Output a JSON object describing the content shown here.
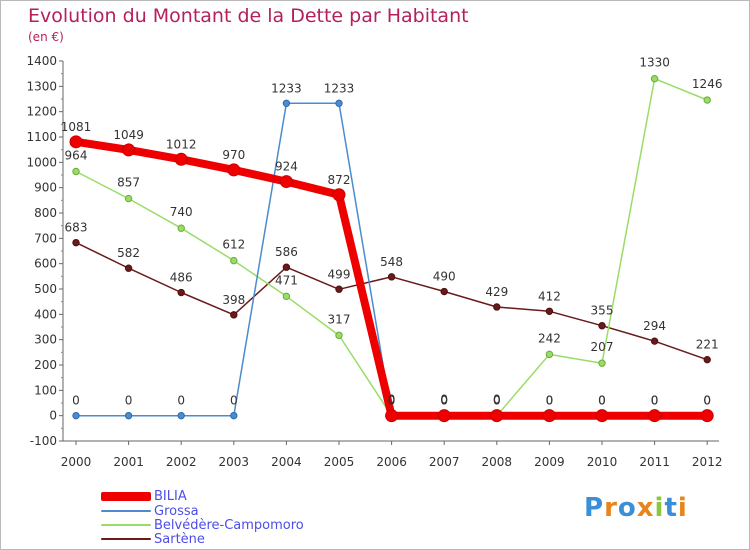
{
  "title": "Evolution du Montant de la Dette par Habitant",
  "subtitle": "(en €)",
  "logo_text": "Proxiti",
  "chart_data": {
    "type": "line",
    "x": [
      "2000",
      "2001",
      "2002",
      "2003",
      "2004",
      "2005",
      "2006",
      "2007",
      "2008",
      "2009",
      "2010",
      "2011",
      "2012"
    ],
    "ylim": [
      -100,
      1400
    ],
    "yticks": [
      -100,
      0,
      100,
      200,
      300,
      400,
      500,
      600,
      700,
      800,
      900,
      1000,
      1100,
      1200,
      1300,
      1400
    ],
    "grid": false,
    "legend_position": "bottom",
    "series": [
      {
        "name": "BILIA",
        "color": "#ee0000",
        "values": [
          1081,
          1049,
          1012,
          970,
          924,
          872,
          0,
          0,
          0,
          0,
          0,
          0,
          0
        ]
      },
      {
        "name": "Grossa",
        "color": "#4a8ccf",
        "values": [
          0,
          0,
          0,
          0,
          1233,
          1233,
          0,
          0,
          0,
          0,
          0,
          0,
          0
        ]
      },
      {
        "name": "Belvédère-Campomoro",
        "color": "#99dd66",
        "values": [
          964,
          857,
          740,
          612,
          471,
          317,
          0,
          0,
          0,
          242,
          207,
          1330,
          1246
        ]
      },
      {
        "name": "Sartène",
        "color": "#6a1a1a",
        "values": [
          683,
          582,
          486,
          398,
          586,
          499,
          548,
          490,
          429,
          412,
          355,
          294,
          221
        ]
      }
    ]
  }
}
